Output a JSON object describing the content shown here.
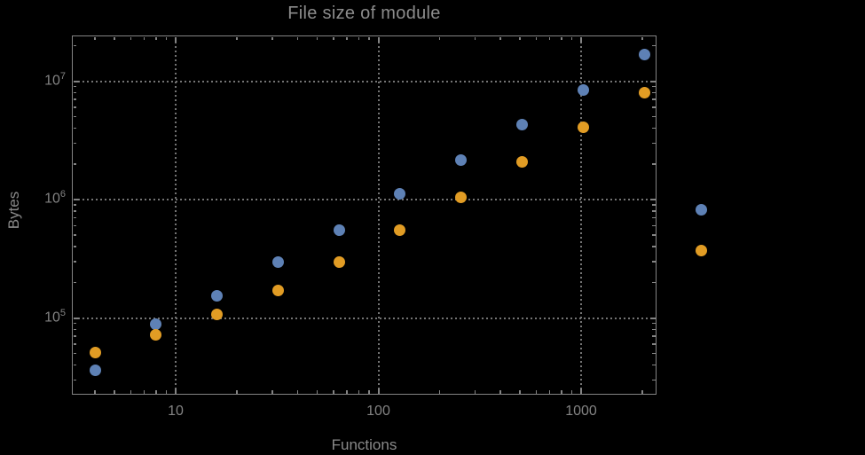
{
  "title": "File size of module",
  "axes": {
    "x_label": "Functions",
    "y_label": "Bytes",
    "x_ticks": [
      {
        "label": "10",
        "value": 10
      },
      {
        "label": "100",
        "value": 100
      },
      {
        "label": "1000",
        "value": 1000
      }
    ],
    "y_ticks": [
      {
        "base": "10",
        "exp": "5",
        "value": 100000
      },
      {
        "base": "10",
        "exp": "6",
        "value": 1000000
      },
      {
        "base": "10",
        "exp": "7",
        "value": 10000000
      }
    ]
  },
  "chart_data": {
    "type": "scatter",
    "title": "File size of module",
    "xlabel": "Functions",
    "ylabel": "Bytes",
    "x_scale": "log",
    "y_scale": "log",
    "xlim": [
      3.1,
      2360
    ],
    "ylim": [
      22500,
      24000000
    ],
    "grid": "dotted gray gridlines at powers of 10, framed on all four sides with inward log ticks",
    "legend_position": "none",
    "x": [
      4,
      8,
      16,
      32,
      64,
      128,
      256,
      512,
      1024,
      2048,
      3900
    ],
    "series": [
      {
        "name": "series-blue",
        "color": "#5E81B5",
        "values": [
          36000,
          88000,
          155000,
          294000,
          556000,
          1110000,
          2170000,
          4330000,
          8480000,
          16900000,
          820000
        ]
      },
      {
        "name": "series-orange",
        "color": "#E19C24",
        "values": [
          50700,
          71500,
          108000,
          172000,
          294000,
          547000,
          1040000,
          2070000,
          4050000,
          8000000,
          368000
        ]
      }
    ],
    "layout_note": "last pair (x≈3900) is rendered outside the right edge of the plot frame"
  },
  "colors": {
    "background": "#000000",
    "frame": "#848484",
    "gridline": "#747474",
    "text": "#8A8A8A",
    "tick_text": "#838383",
    "series_blue": "#5E81B5",
    "series_orange": "#E19C24"
  }
}
